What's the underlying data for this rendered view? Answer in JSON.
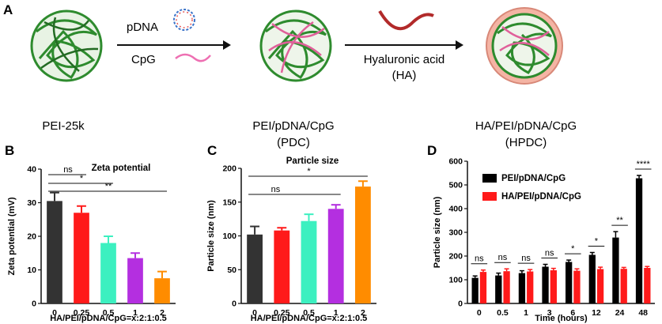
{
  "panel_a": {
    "letter": "A",
    "step1_labels": [
      "pDNA",
      "CpG"
    ],
    "step2_label_line1": "Hyaluronic acid",
    "step2_label_line2": "(HA)",
    "names": [
      {
        "line1": "PEI-25k",
        "line2": ""
      },
      {
        "line1": "PEI/pDNA/CpG",
        "line2": "(PDC)"
      },
      {
        "line1": "HA/PEI/pDNA/CpG",
        "line2": "(HPDC)"
      }
    ],
    "colors": {
      "pei": "#2e8b2e",
      "pdna": "#e0609a",
      "cpg": "#ee6fb2",
      "ha": "#b22a2a",
      "shell": "#f4b4a4"
    }
  },
  "chart_data": [
    {
      "panel": "B",
      "type": "bar",
      "title": "Zeta potential",
      "ylabel": "Zeta potential (mV)",
      "xlabel": "HA/PEI/pDNA/CpG=x:2:1:0.5",
      "categories": [
        "0",
        "0.25",
        "0.5",
        "1",
        "2"
      ],
      "values": [
        30.5,
        27,
        18,
        13.5,
        7.5
      ],
      "errors": [
        2.5,
        2,
        2,
        1.5,
        2
      ],
      "colors": [
        "#333333",
        "#ff1a1a",
        "#3cf0c0",
        "#b42fe0",
        "#ff8c00"
      ],
      "ylim": [
        0,
        40
      ],
      "yticks": [
        "0",
        "10",
        "20",
        "30",
        "40"
      ],
      "significance": [
        {
          "label": "ns",
          "from": 0,
          "to": 1
        },
        {
          "label": "*",
          "from": 0,
          "to": 2
        },
        {
          "label": "**",
          "from": 0,
          "to": 4
        }
      ]
    },
    {
      "panel": "C",
      "type": "bar",
      "title": "Particle size",
      "ylabel": "Particle size (nm)",
      "xlabel": "HA/PEI/pDNA/CpG=x:2:1:0.5",
      "categories": [
        "0",
        "0.25",
        "0.5",
        "1",
        "2"
      ],
      "values": [
        102,
        108,
        122,
        140,
        173
      ],
      "errors": [
        12,
        4,
        10,
        6,
        8
      ],
      "colors": [
        "#333333",
        "#ff1a1a",
        "#3cf0c0",
        "#b42fe0",
        "#ff8c00"
      ],
      "ylim": [
        0,
        200
      ],
      "yticks": [
        "0",
        "50",
        "100",
        "150",
        "200"
      ],
      "significance": [
        {
          "label": "ns",
          "from": 0,
          "to": 3
        },
        {
          "label": "*",
          "from": 0,
          "to": 4
        }
      ]
    },
    {
      "panel": "D",
      "type": "bar",
      "ylabel": "Particle size (nm)",
      "xlabel": "Time (hours)",
      "categories": [
        "0",
        "0.5",
        "1",
        "3",
        "6",
        "12",
        "24",
        "48"
      ],
      "series": [
        {
          "name": "PEI/pDNA/CpG",
          "color": "#000000",
          "values": [
            108,
            118,
            128,
            155,
            175,
            205,
            278,
            528
          ],
          "errors": [
            8,
            10,
            10,
            10,
            8,
            10,
            25,
            12
          ]
        },
        {
          "name": "HA/PEI/pDNA/CpG",
          "color": "#ff1a1a",
          "values": [
            133,
            136,
            135,
            140,
            138,
            145,
            146,
            150
          ],
          "errors": [
            8,
            10,
            8,
            8,
            8,
            8,
            6,
            6
          ]
        }
      ],
      "ylim": [
        0,
        600
      ],
      "yticks": [
        "0",
        "100",
        "200",
        "300",
        "400",
        "500",
        "600"
      ],
      "significance": [
        "ns",
        "ns",
        "ns",
        "ns",
        "*",
        "*",
        "**",
        "****"
      ],
      "legend": "top-left"
    }
  ]
}
